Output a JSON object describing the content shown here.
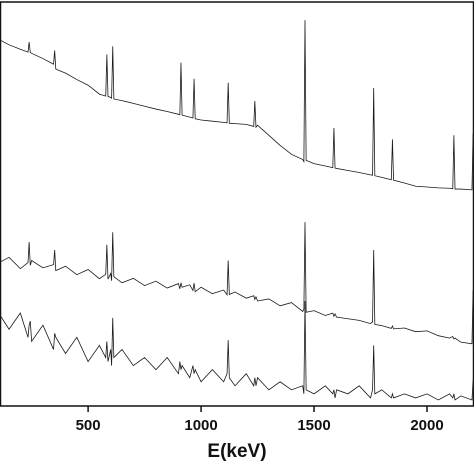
{
  "chart_data": {
    "type": "line",
    "x_label": "E(keV)",
    "x": [
      110,
      150,
      200,
      234,
      239,
      244,
      250,
      300,
      347,
      352,
      357,
      400,
      450,
      500,
      550,
      578,
      583,
      588,
      600,
      604,
      609,
      614,
      650,
      700,
      750,
      800,
      850,
      900,
      906,
      911,
      916,
      950,
      964,
      969,
      974,
      1000,
      1050,
      1100,
      1115,
      1120,
      1125,
      1150,
      1200,
      1233,
      1238,
      1243,
      1250,
      1300,
      1350,
      1400,
      1450,
      1455,
      1460,
      1465,
      1500,
      1550,
      1583,
      1588,
      1593,
      1600,
      1650,
      1700,
      1750,
      1759,
      1764,
      1769,
      1800,
      1842,
      1847,
      1852,
      1900,
      1950,
      2000,
      2050,
      2100,
      2114,
      2119,
      2124,
      2150,
      2199,
      2204,
      2208
    ],
    "series": [
      {
        "color": "#1a1a1a",
        "values": [
          90.6,
          89.4,
          88.3,
          87.6,
          90.1,
          87.5,
          87.3,
          86,
          84.6,
          88,
          83.4,
          82.4,
          80.8,
          79.4,
          77.2,
          76.7,
          87,
          76.6,
          76.4,
          76.2,
          89,
          76,
          75.6,
          74.9,
          74.2,
          73.5,
          72.9,
          72.2,
          72.1,
          85,
          72,
          71.5,
          71.3,
          81,
          71.1,
          70.8,
          70.5,
          70.2,
          70.1,
          80,
          70,
          69.9,
          69.7,
          69.2,
          75.5,
          69,
          69.5,
          67,
          64.5,
          62.3,
          61,
          60.5,
          95.5,
          60.8,
          60,
          59.4,
          59,
          68.8,
          58.9,
          58.8,
          58.3,
          57.8,
          57.2,
          57.1,
          78.7,
          57,
          56.6,
          56,
          66,
          55.9,
          55.2,
          54.4,
          54.2,
          54,
          53.9,
          53.8,
          67,
          53.7,
          53.7,
          53.5,
          67.5,
          53.5
        ]
      },
      {
        "color": "#1a1a1a",
        "values": [
          35.6,
          36.8,
          34,
          35.5,
          40.6,
          34.8,
          36,
          34.2,
          35,
          38.6,
          33.5,
          34.6,
          32.5,
          33.8,
          31.5,
          32.6,
          39.9,
          31.4,
          32.8,
          31,
          43,
          32,
          30.5,
          31.6,
          29.8,
          30.9,
          29.2,
          30.3,
          29,
          30.5,
          29.4,
          30,
          28.6,
          30.4,
          28.3,
          29.4,
          27.8,
          28.7,
          27.5,
          36,
          27.6,
          28.2,
          26.7,
          27.3,
          26.4,
          27,
          26,
          26.5,
          24.8,
          25.6,
          23.4,
          24,
          45.5,
          23.2,
          23.6,
          22.4,
          23,
          22.2,
          22.8,
          22,
          21.6,
          21.2,
          20.4,
          20.8,
          38.6,
          20.2,
          19.9,
          19.2,
          19.8,
          19.1,
          19.3,
          18.4,
          18.6,
          17.4,
          16.8,
          17.2,
          16.6,
          16.8,
          15.8,
          15.4,
          28.7,
          15
        ]
      },
      {
        "color": "#1a1a1a",
        "values": [
          22.5,
          19,
          23,
          17,
          20,
          21,
          16,
          20,
          14,
          18,
          17,
          13,
          17,
          11,
          15,
          12,
          16,
          11,
          14,
          10,
          21.8,
          12,
          14,
          10,
          12,
          9,
          12,
          8,
          11,
          9,
          10,
          7,
          10,
          8,
          9,
          6,
          9,
          6,
          8,
          16.3,
          7,
          5,
          8,
          5,
          7,
          5,
          7,
          4,
          6,
          4,
          5,
          3,
          26,
          4,
          3,
          5,
          3,
          4,
          2,
          4,
          3,
          5,
          2,
          4,
          15,
          3,
          4,
          2,
          3,
          2,
          3,
          2,
          3,
          1.5,
          3,
          2,
          3,
          1.5,
          2.5,
          1.5,
          6.4,
          2
        ]
      }
    ],
    "xlim": [
      110,
      2208
    ],
    "xticks": [
      500,
      1000,
      1500,
      2000
    ],
    "ylim": [
      0,
      100
    ]
  }
}
